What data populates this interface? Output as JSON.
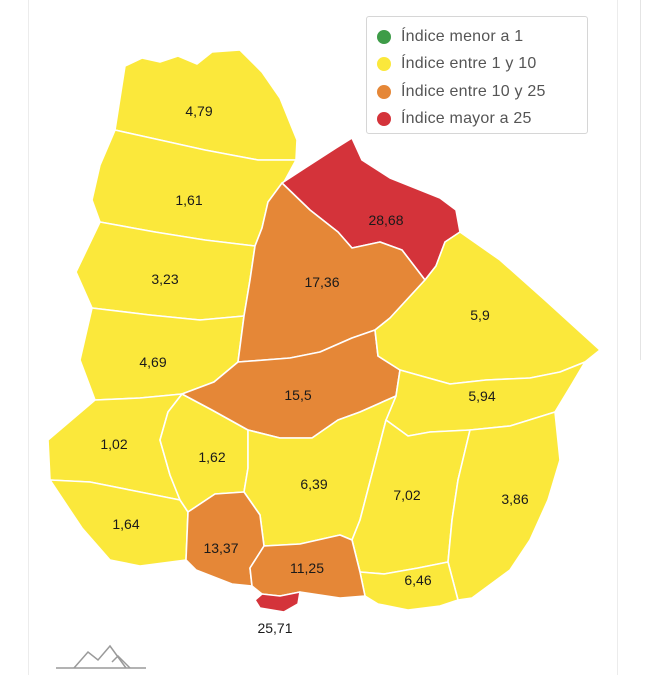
{
  "map": {
    "legend": [
      {
        "label": "Índice menor a 1",
        "color": "#3e9c48"
      },
      {
        "label": "Índice entre 1 y 10",
        "color": "#fbe83b"
      },
      {
        "label": "Índice entre 10 y 25",
        "color": "#e58737"
      },
      {
        "label": "Índice mayor a 25",
        "color": "#d4333a"
      }
    ],
    "departments": [
      {
        "id": "artigas",
        "value": "4,79",
        "category": "1-10"
      },
      {
        "id": "salto",
        "value": "1,61",
        "category": "1-10"
      },
      {
        "id": "paysandu",
        "value": "3,23",
        "category": "1-10"
      },
      {
        "id": "rio-negro",
        "value": "4,69",
        "category": "1-10"
      },
      {
        "id": "soriano",
        "value": "1,02",
        "category": "1-10"
      },
      {
        "id": "colonia",
        "value": "1,64",
        "category": "1-10"
      },
      {
        "id": "flores",
        "value": "1,62",
        "category": "1-10"
      },
      {
        "id": "rivera",
        "value": "28,68",
        "category": ">25"
      },
      {
        "id": "tacuarembo",
        "value": "17,36",
        "category": "10-25"
      },
      {
        "id": "durazno",
        "value": "15,5",
        "category": "10-25"
      },
      {
        "id": "cerro-largo",
        "value": "5,9",
        "category": "1-10"
      },
      {
        "id": "treinta-y-tres",
        "value": "5,94",
        "category": "1-10"
      },
      {
        "id": "florida",
        "value": "6,39",
        "category": "1-10"
      },
      {
        "id": "lavalleja",
        "value": "7,02",
        "category": "1-10"
      },
      {
        "id": "rocha",
        "value": "3,86",
        "category": "1-10"
      },
      {
        "id": "maldonado",
        "value": "6,46",
        "category": "1-10"
      },
      {
        "id": "san-jose",
        "value": "13,37",
        "category": "10-25"
      },
      {
        "id": "canelones",
        "value": "11,25",
        "category": "10-25"
      },
      {
        "id": "montevideo",
        "value": "25,71",
        "category": ">25"
      }
    ]
  }
}
